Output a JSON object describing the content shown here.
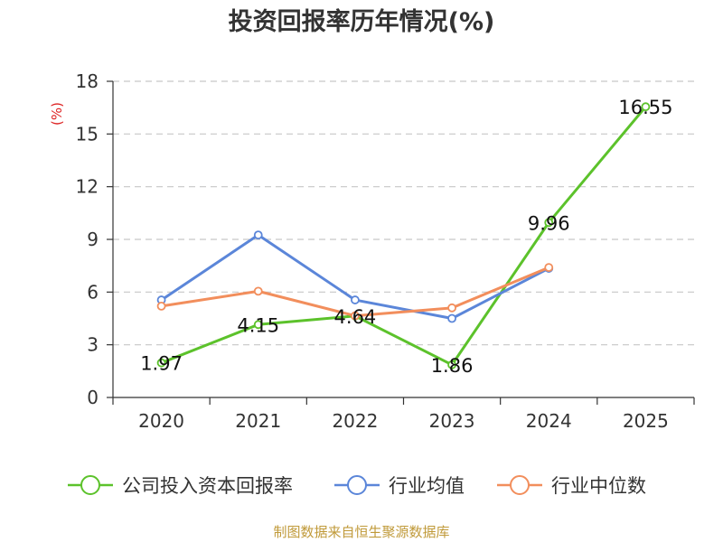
{
  "chart_data": {
    "type": "line",
    "title": "投资回报率历年情况(%)",
    "ylabel": "(%)",
    "xlabel": "",
    "categories": [
      "2020",
      "2021",
      "2022",
      "2023",
      "2024",
      "2025"
    ],
    "ylim": [
      0,
      18
    ],
    "yticks": [
      0,
      3,
      6,
      9,
      12,
      15,
      18
    ],
    "grid": true,
    "legend_position": "bottom",
    "series": [
      {
        "name": "公司投入资本回报率",
        "color": "#5cc22b",
        "values": [
          1.97,
          4.15,
          4.64,
          1.86,
          9.96,
          16.55
        ],
        "labels": [
          "1.97",
          "4.15",
          "4.64",
          "1.86",
          "9.96",
          "16.55"
        ]
      },
      {
        "name": "行业均值",
        "color": "#5b86d9",
        "values": [
          5.55,
          9.25,
          5.55,
          4.5,
          7.35,
          null
        ]
      },
      {
        "name": "行业中位数",
        "color": "#f28e5c",
        "values": [
          5.2,
          6.05,
          4.65,
          5.1,
          7.4,
          null
        ]
      }
    ]
  },
  "source": "制图数据来自恒生聚源数据库"
}
